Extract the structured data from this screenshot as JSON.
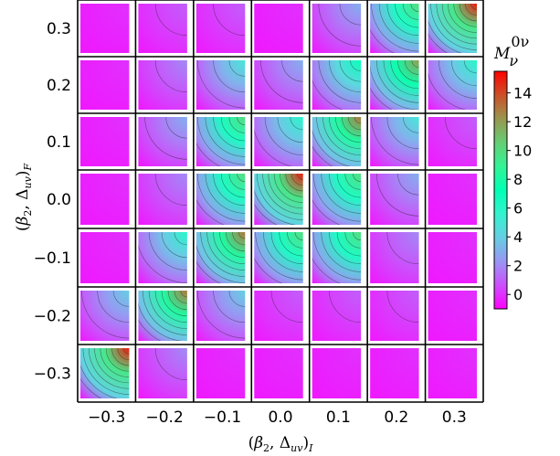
{
  "chart_data": {
    "type": "heatmap",
    "title": "",
    "xlabel": "(β2, Δuv)I",
    "ylabel": "(β2, Δuv)F",
    "x_categories": [
      "−0.3",
      "−0.2",
      "−0.1",
      "0.0",
      "0.1",
      "0.2",
      "0.3"
    ],
    "y_categories": [
      "−0.3",
      "−0.2",
      "−0.1",
      "0.0",
      "0.1",
      "0.2",
      "0.3"
    ],
    "colorbar": {
      "label": "M",
      "label_super": "0ν",
      "label_sub": "ν",
      "range": [
        -1,
        15.5
      ],
      "ticks": [
        "0",
        "2",
        "4",
        "6",
        "8",
        "10",
        "12",
        "14"
      ],
      "colormap": "rainbow"
    },
    "cell_peak_values_rows_top_to_bottom": [
      [
        0,
        1,
        1,
        0,
        3,
        10,
        15
      ],
      [
        0,
        2,
        5,
        3,
        7,
        12,
        6
      ],
      [
        0,
        3,
        10,
        6,
        13,
        5,
        1
      ],
      [
        0,
        2,
        10,
        15,
        10,
        3,
        0
      ],
      [
        0,
        6,
        13,
        10,
        10,
        2,
        0
      ],
      [
        4,
        13,
        4,
        1,
        1,
        1,
        0
      ],
      [
        15,
        2,
        0,
        0,
        0,
        0,
        0
      ]
    ]
  }
}
